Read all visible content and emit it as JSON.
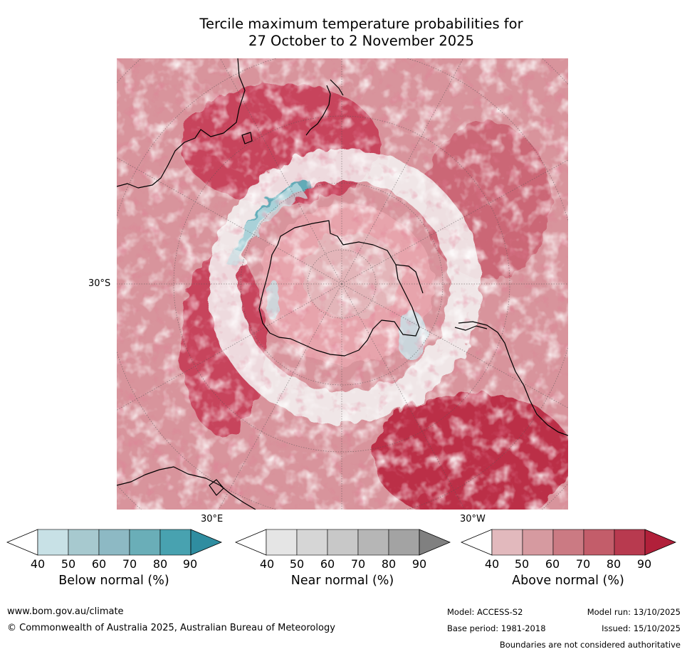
{
  "title_line1": "Tercile maximum temperature probabilities for",
  "title_line2": "27 October to 2 November 2025",
  "map": {
    "lat_label": "30°S",
    "lon_label_east": "30°E",
    "lon_label_west": "30°W",
    "ocean_base_color": "#d8949c",
    "band_strong_color": "#c43552",
    "antarctica_color": "#e7a4ac",
    "below_color": "#c5e0e6",
    "near_color": "#e6e6e6"
  },
  "colorbars": [
    {
      "label": "Below normal (%)",
      "ticks": [
        "40",
        "50",
        "60",
        "70",
        "80",
        "90"
      ],
      "colors": [
        "#ffffff",
        "#c8e1e6",
        "#a7c9cf",
        "#8db9c4",
        "#6aaeb8",
        "#48a2b0",
        "#2f8da0"
      ]
    },
    {
      "label": "Near normal (%)",
      "ticks": [
        "40",
        "50",
        "60",
        "70",
        "80",
        "90"
      ],
      "colors": [
        "#ffffff",
        "#e5e5e5",
        "#d6d6d6",
        "#c8c8c8",
        "#b6b6b6",
        "#a3a3a3",
        "#808080"
      ]
    },
    {
      "label": "Above normal (%)",
      "ticks": [
        "40",
        "50",
        "60",
        "70",
        "80",
        "90"
      ],
      "colors": [
        "#ffffff",
        "#e2b9bd",
        "#d69aa0",
        "#cb7a83",
        "#c35d6a",
        "#b83a4f",
        "#b1203a"
      ]
    }
  ],
  "footer": {
    "website": "www.bom.gov.au/climate",
    "copyright": "© Commonwealth of Australia 2025, Australian Bureau of Meteorology",
    "model": "Model: ACCESS-S2",
    "model_run": "Model run: 13/10/2025",
    "base_period": "Base period: 1981-2018",
    "issued": "Issued: 15/10/2025",
    "disclaimer": "Boundaries are not considered authoritative"
  }
}
